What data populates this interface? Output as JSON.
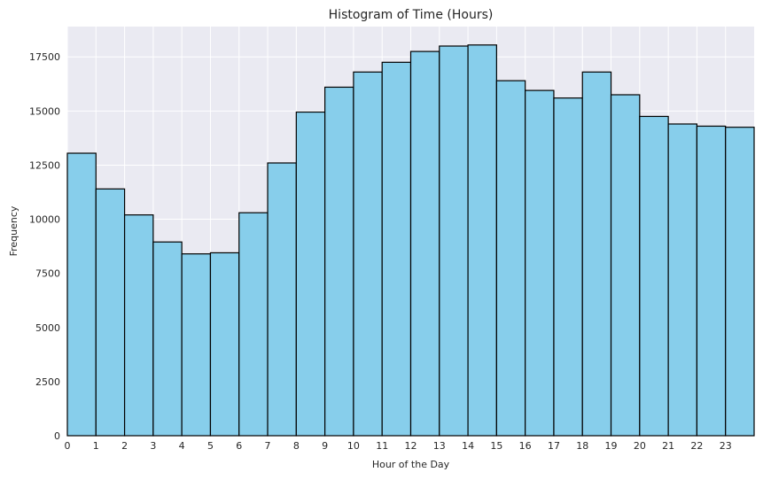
{
  "chart_data": {
    "type": "bar",
    "title": "Histogram of Time (Hours)",
    "xlabel": "Hour of the Day",
    "ylabel": "Frequency",
    "categories": [
      "0",
      "1",
      "2",
      "3",
      "4",
      "5",
      "6",
      "7",
      "8",
      "9",
      "10",
      "11",
      "12",
      "13",
      "14",
      "15",
      "16",
      "17",
      "18",
      "19",
      "20",
      "21",
      "22",
      "23"
    ],
    "values": [
      13050,
      11400,
      10200,
      8950,
      8400,
      8450,
      10300,
      12600,
      14950,
      16100,
      16800,
      17250,
      17750,
      18000,
      18050,
      16400,
      15950,
      15600,
      16800,
      15750,
      14750,
      14400,
      14300,
      14250
    ],
    "xlim": [
      0,
      24
    ],
    "ylim": [
      0,
      18900
    ],
    "yticks": [
      0,
      2500,
      5000,
      7500,
      10000,
      12500,
      15000,
      17500
    ],
    "ytick_labels": [
      "0",
      "2500",
      "5000",
      "7500",
      "10000",
      "12500",
      "15000",
      "17500"
    ],
    "grid": true,
    "colors": {
      "bar_fill": "#87ceeb",
      "bar_edge": "#000000",
      "plot_background": "#eaeaf2",
      "grid": "#ffffff"
    }
  }
}
